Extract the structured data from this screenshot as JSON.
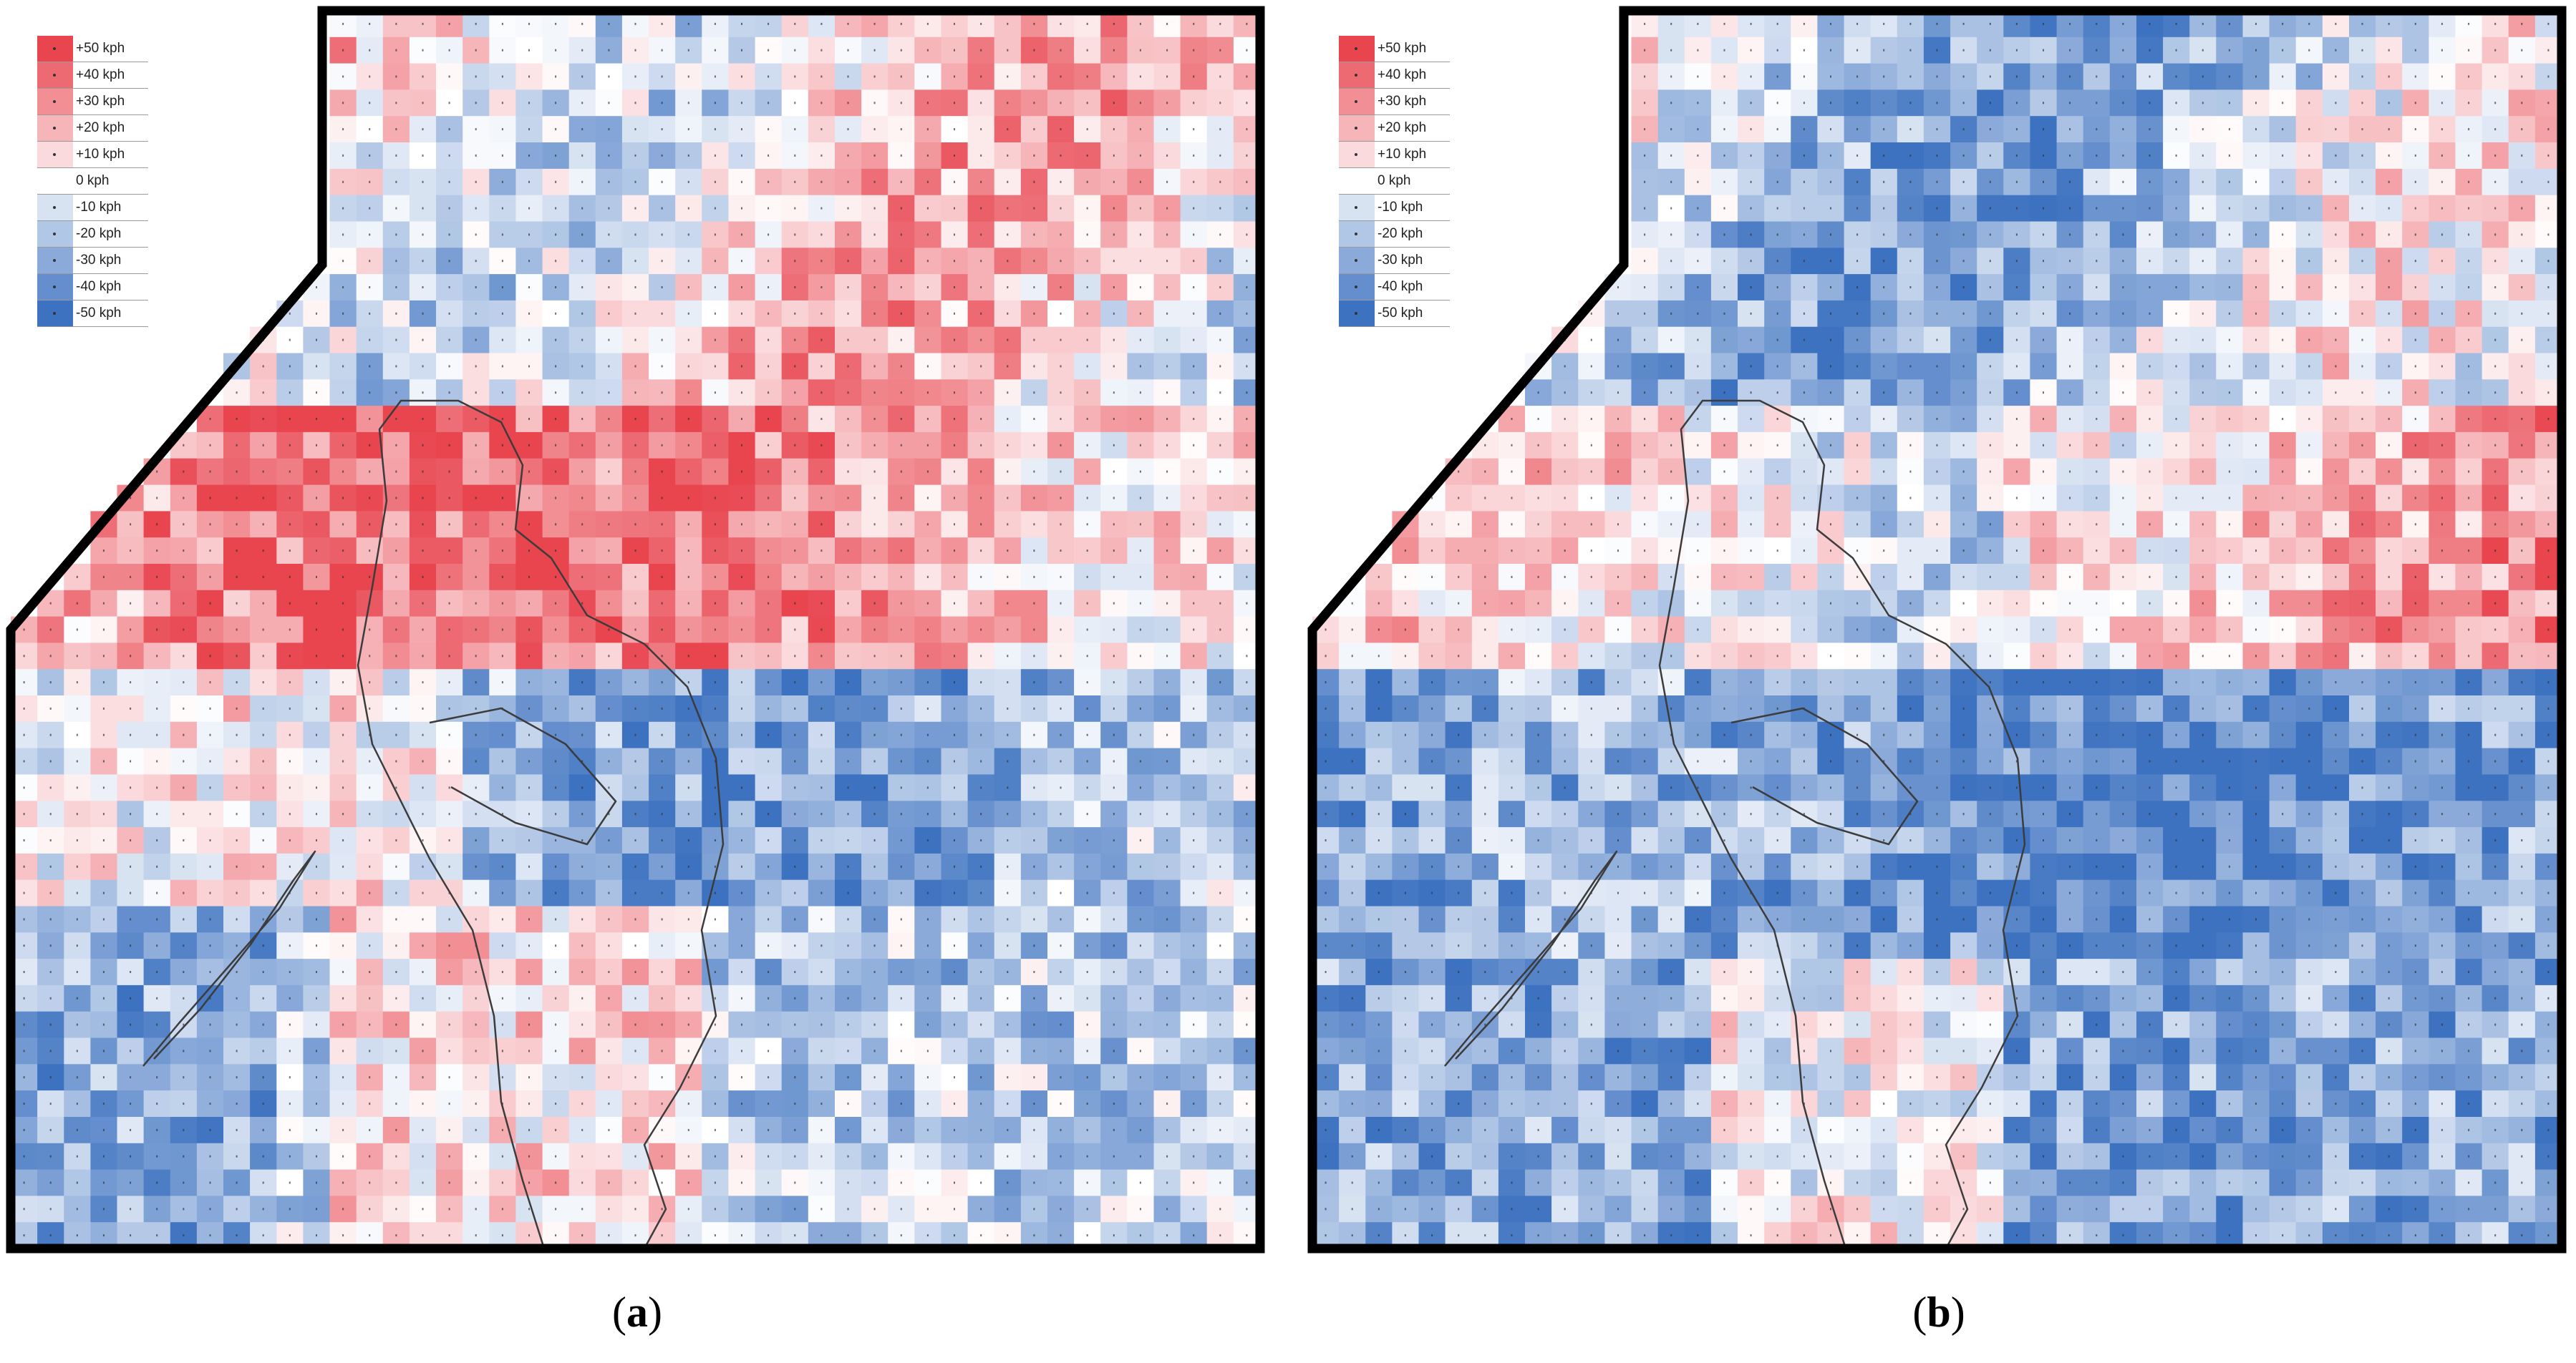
{
  "colors": {
    "pos_max": "#e8454f",
    "zero": "#ffffff",
    "neg_max": "#3d72c0",
    "coast": "#3c3c3c",
    "frame": "#000000"
  },
  "legend": {
    "items": [
      {
        "label": "+50 kph",
        "value": 50
      },
      {
        "label": "+40 kph",
        "value": 40
      },
      {
        "label": "+30 kph",
        "value": 30
      },
      {
        "label": "+20 kph",
        "value": 20
      },
      {
        "label": "+10 kph",
        "value": 10
      },
      {
        "label": "0 kph",
        "value": 0
      },
      {
        "label": "-10 kph",
        "value": -10
      },
      {
        "label": "-20 kph",
        "value": -20
      },
      {
        "label": "-30 kph",
        "value": -30
      },
      {
        "label": "-40 kph",
        "value": -40
      },
      {
        "label": "-50 kph",
        "value": -50
      }
    ]
  },
  "panels": [
    {
      "caption_open": "(",
      "caption_letter": "a",
      "caption_close": ")"
    },
    {
      "caption_open": "(",
      "caption_letter": "b",
      "caption_close": ")"
    }
  ]
}
